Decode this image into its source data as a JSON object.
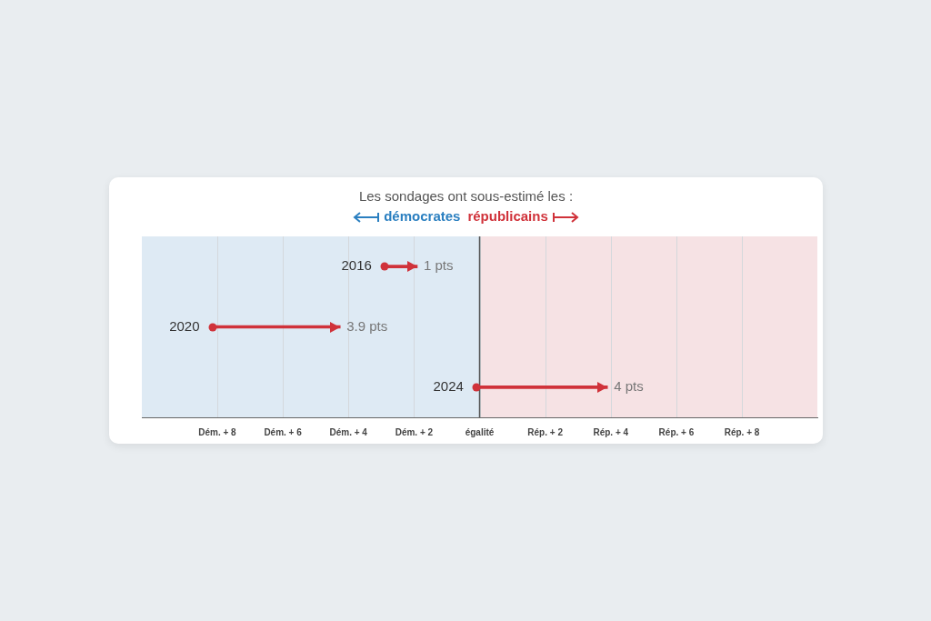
{
  "chart_data": {
    "type": "bar",
    "orientation": "horizontal",
    "title": "Les sondages ont sous-estimé les :",
    "categories": [
      "2016",
      "2020",
      "2024"
    ],
    "base": [
      -2.9,
      -8.15,
      -0.1
    ],
    "values": [
      1,
      3.9,
      4
    ],
    "value_labels": [
      "1 pts",
      "3.9 pts",
      "4 pts"
    ],
    "color": "#d0323a",
    "xlim": [
      -10.3,
      10.3
    ],
    "xticks": [
      {
        "value": -8,
        "label": "Dém. + 8"
      },
      {
        "value": -6,
        "label": "Dém. + 6"
      },
      {
        "value": -4,
        "label": "Dém. + 4"
      },
      {
        "value": -2,
        "label": "Dém. + 2"
      },
      {
        "value": 0,
        "label": "égalité"
      },
      {
        "value": 2,
        "label": "Rép. + 2"
      },
      {
        "value": 4,
        "label": "Rép. + 4"
      },
      {
        "value": 6,
        "label": "Rép. + 6"
      },
      {
        "value": 8,
        "label": "Rép. + 8"
      }
    ],
    "bands": [
      {
        "axis": "x",
        "from": -10.3,
        "to": 0,
        "label": "démocrates",
        "color": "#deeaf4"
      },
      {
        "axis": "x",
        "from": 0,
        "to": 10.3,
        "label": "républicains",
        "color": "#f6e2e4"
      }
    ],
    "ref_lines": [
      {
        "axis": "x",
        "value": 0,
        "color": "#555555"
      }
    ],
    "grid": "x",
    "legend": false
  }
}
